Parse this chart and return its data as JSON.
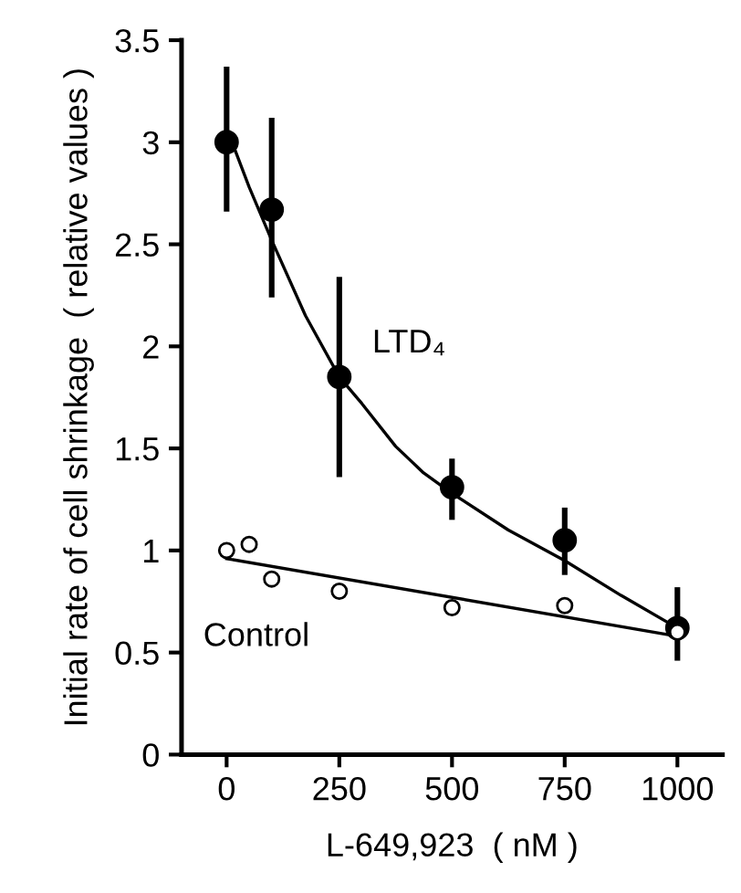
{
  "chart_data": {
    "type": "scatter",
    "xlabel": "L-649,923  ( nM )",
    "ylabel": "Initial rate of cell shrinkage  ( relative values )",
    "xlim": [
      -100,
      1100
    ],
    "ylim": [
      0,
      3.5
    ],
    "xticks": [
      0,
      250,
      500,
      750,
      1000
    ],
    "yticks": [
      0,
      0.5,
      1,
      1.5,
      2,
      2.5,
      3,
      3.5
    ],
    "grid": false,
    "legend": false,
    "marker": "circle",
    "series": [
      {
        "type": "line",
        "color": "#000000",
        "marker": "none",
        "x": [
          0,
          50,
          100,
          175,
          250,
          300,
          375,
          437,
          500,
          625,
          750,
          875,
          1000
        ],
        "values": [
          3.07,
          2.78,
          2.52,
          2.15,
          1.85,
          1.72,
          1.51,
          1.38,
          1.28,
          1.1,
          0.95,
          0.78,
          0.62
        ]
      },
      {
        "type": "line",
        "color": "#000000",
        "marker": "none",
        "x": [
          0,
          1000
        ],
        "values": [
          0.96,
          0.58
        ]
      },
      {
        "name": "LTD₄",
        "color": "#000000",
        "x": [
          0,
          100,
          250,
          500,
          750,
          1000
        ],
        "values": [
          3.0,
          2.67,
          1.85,
          1.31,
          1.05,
          0.62
        ],
        "errors": [
          [
            2.66,
            3.37
          ],
          [
            2.24,
            3.12
          ],
          [
            1.36,
            2.34
          ],
          [
            1.15,
            1.45
          ],
          [
            0.88,
            1.21
          ],
          [
            0.46,
            0.82
          ]
        ]
      },
      {
        "name": "Control",
        "color": "#ffffff",
        "x": [
          0,
          50,
          100,
          250,
          500,
          750,
          1000
        ],
        "values": [
          1.0,
          1.03,
          0.86,
          0.8,
          0.72,
          0.73,
          0.6
        ]
      }
    ]
  }
}
